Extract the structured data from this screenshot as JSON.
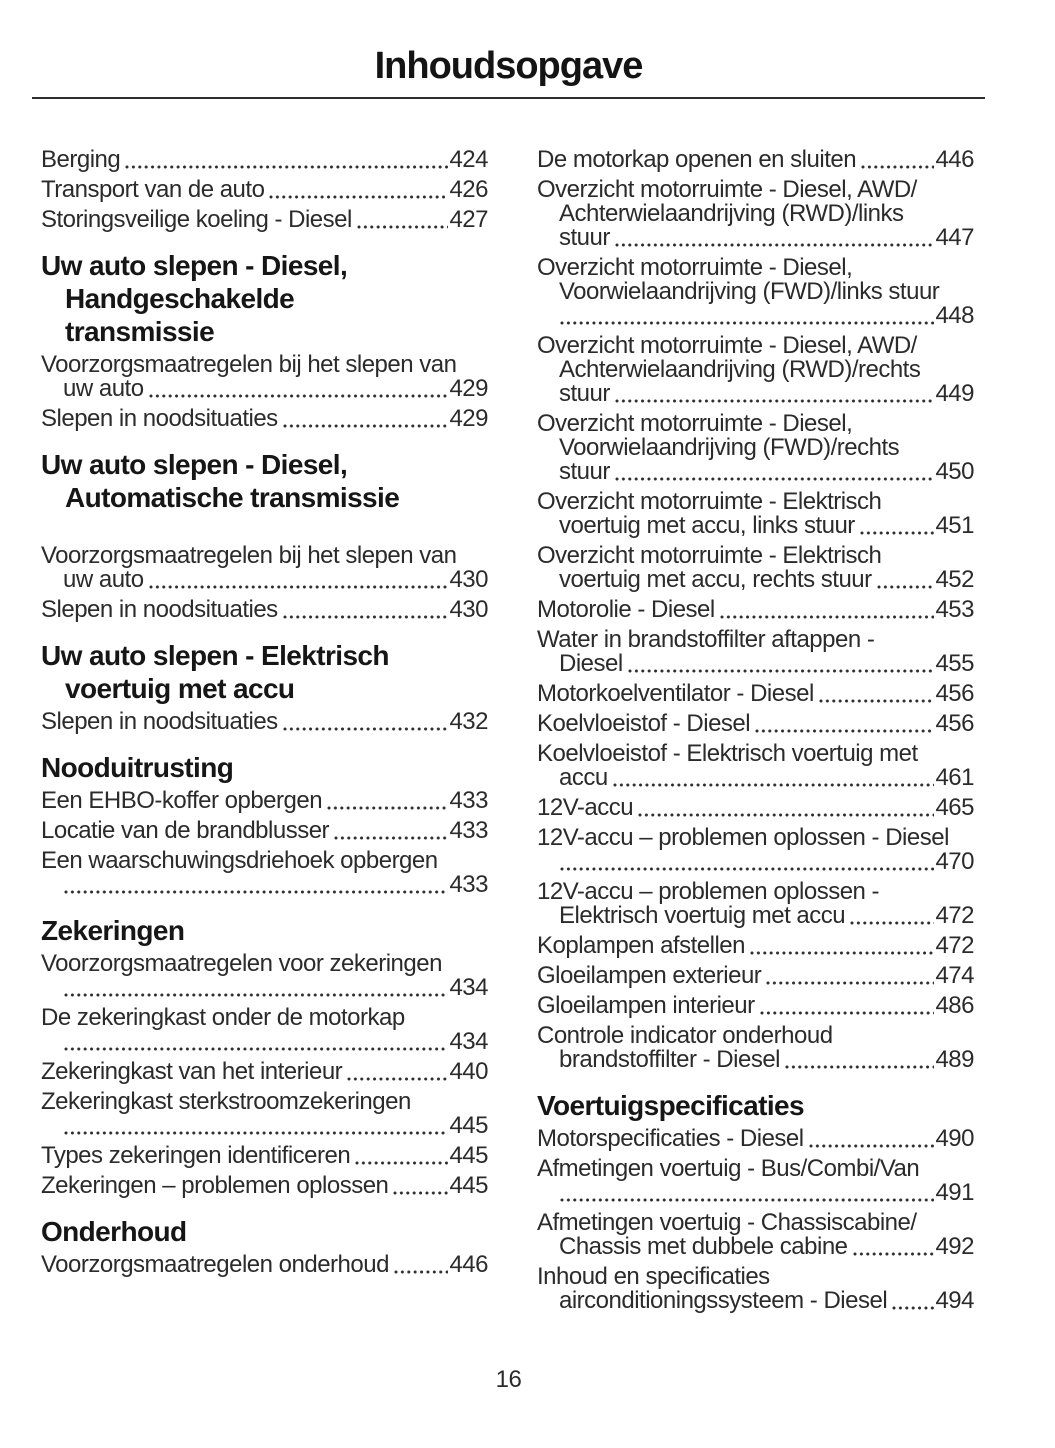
{
  "title": "Inhoudsopgave",
  "footer_page_number": "16",
  "styles": {
    "background": "#ffffff",
    "text_color": "#2b2b2b",
    "heading_color": "#161616",
    "rule_color": "#2e2e2e"
  },
  "toc": {
    "columns": [
      {
        "side": "left",
        "groups": [
          {
            "heading_lines": [],
            "entries": [
              {
                "lines": [],
                "last": "Berging",
                "page": "424"
              },
              {
                "lines": [],
                "last": "Transport van de auto",
                "page": "426"
              },
              {
                "lines": [],
                "last": "Storingsveilige koeling - Diesel",
                "page": "427"
              }
            ]
          },
          {
            "heading_lines": [
              "Uw auto slepen - Diesel,",
              "Handgeschakelde",
              "transmissie"
            ],
            "entries": [
              {
                "lines": [
                  "Voorzorgsmaatregelen bij het slepen van"
                ],
                "last": "uw auto",
                "page": "429"
              },
              {
                "lines": [],
                "last": "Slepen in noodsituaties",
                "page": "429"
              }
            ]
          },
          {
            "heading_lines": [
              "Uw auto slepen - Diesel,",
              "Automatische transmissie"
            ],
            "entries": [
              {
                "lines": [
                  "Voorzorgsmaatregelen bij het slepen van"
                ],
                "last": "uw auto",
                "page": "430",
                "gap_before": true
              },
              {
                "lines": [],
                "last": "Slepen in noodsituaties",
                "page": "430"
              }
            ]
          },
          {
            "heading_lines": [
              "Uw auto slepen - Elektrisch",
              "voertuig met accu"
            ],
            "entries": [
              {
                "lines": [],
                "last": "Slepen in noodsituaties",
                "page": "432"
              }
            ]
          },
          {
            "heading_lines": [
              "Nooduitrusting"
            ],
            "entries": [
              {
                "lines": [],
                "last": "Een EHBO-koffer opbergen",
                "page": "433"
              },
              {
                "lines": [],
                "last": "Locatie van de brandblusser",
                "page": "433"
              },
              {
                "lines": [
                  "Een waarschuwingsdriehoek opbergen"
                ],
                "last": "",
                "page": "433"
              }
            ]
          },
          {
            "heading_lines": [
              "Zekeringen"
            ],
            "entries": [
              {
                "lines": [
                  "Voorzorgsmaatregelen voor zekeringen"
                ],
                "last": "",
                "page": "434"
              },
              {
                "lines": [
                  "De zekeringkast onder de motorkap"
                ],
                "last": "",
                "page": "434"
              },
              {
                "lines": [],
                "last": "Zekeringkast van het interieur",
                "page": "440"
              },
              {
                "lines": [
                  "Zekeringkast sterkstroomzekeringen"
                ],
                "last": "",
                "page": "445"
              },
              {
                "lines": [],
                "last": "Types zekeringen identificeren",
                "page": "445"
              },
              {
                "lines": [],
                "last": "Zekeringen – problemen oplossen",
                "page": "445"
              }
            ]
          },
          {
            "heading_lines": [
              "Onderhoud"
            ],
            "entries": [
              {
                "lines": [],
                "last": "Voorzorgsmaatregelen onderhoud",
                "page": "446"
              }
            ]
          }
        ]
      },
      {
        "side": "right",
        "groups": [
          {
            "heading_lines": [],
            "entries": [
              {
                "lines": [],
                "last": "De motorkap openen en sluiten",
                "page": "446"
              },
              {
                "lines": [
                  "Overzicht motorruimte - Diesel, AWD/",
                  "Achterwielaandrijving (RWD)/links"
                ],
                "last": "stuur",
                "page": "447"
              },
              {
                "lines": [
                  "Overzicht motorruimte - Diesel,",
                  "Voorwielaandrijving (FWD)/links stuur"
                ],
                "last": "",
                "page": "448"
              },
              {
                "lines": [
                  "Overzicht motorruimte - Diesel, AWD/",
                  "Achterwielaandrijving (RWD)/rechts"
                ],
                "last": "stuur",
                "page": "449"
              },
              {
                "lines": [
                  "Overzicht motorruimte - Diesel,",
                  "Voorwielaandrijving (FWD)/rechts"
                ],
                "last": "stuur",
                "page": "450"
              },
              {
                "lines": [
                  "Overzicht motorruimte - Elektrisch"
                ],
                "last": "voertuig met accu, links stuur",
                "page": "451"
              },
              {
                "lines": [
                  "Overzicht motorruimte - Elektrisch"
                ],
                "last": "voertuig met accu, rechts stuur",
                "page": "452"
              },
              {
                "lines": [],
                "last": "Motorolie - Diesel",
                "page": "453"
              },
              {
                "lines": [
                  "Water in brandstoffilter aftappen -"
                ],
                "last": "Diesel",
                "page": "455"
              },
              {
                "lines": [],
                "last": "Motorkoelventilator - Diesel",
                "page": "456"
              },
              {
                "lines": [],
                "last": "Koelvloeistof - Diesel",
                "page": "456"
              },
              {
                "lines": [
                  "Koelvloeistof - Elektrisch voertuig met"
                ],
                "last": "accu",
                "page": "461"
              },
              {
                "lines": [],
                "last": "12V-accu",
                "page": "465"
              },
              {
                "lines": [
                  "12V-accu – problemen oplossen - Diesel"
                ],
                "last": "",
                "page": "470"
              },
              {
                "lines": [
                  "12V-accu – problemen oplossen -"
                ],
                "last": "Elektrisch voertuig met accu",
                "page": "472"
              },
              {
                "lines": [],
                "last": "Koplampen afstellen",
                "page": "472"
              },
              {
                "lines": [],
                "last": "Gloeilampen exterieur",
                "page": "474"
              },
              {
                "lines": [],
                "last": "Gloeilampen interieur",
                "page": "486"
              },
              {
                "lines": [
                  "Controle indicator onderhoud"
                ],
                "last": "brandstoffilter - Diesel",
                "page": "489"
              }
            ]
          },
          {
            "heading_lines": [
              "Voertuigspecificaties"
            ],
            "entries": [
              {
                "lines": [],
                "last": "Motorspecificaties - Diesel",
                "page": "490"
              },
              {
                "lines": [
                  "Afmetingen voertuig - Bus/Combi/Van"
                ],
                "last": "",
                "page": "491"
              },
              {
                "lines": [
                  "Afmetingen voertuig - Chassiscabine/"
                ],
                "last": "Chassis met dubbele cabine",
                "page": "492"
              },
              {
                "lines": [
                  "Inhoud en specificaties"
                ],
                "last": "airconditioningssysteem - Diesel",
                "page": "494"
              }
            ]
          }
        ]
      }
    ]
  }
}
